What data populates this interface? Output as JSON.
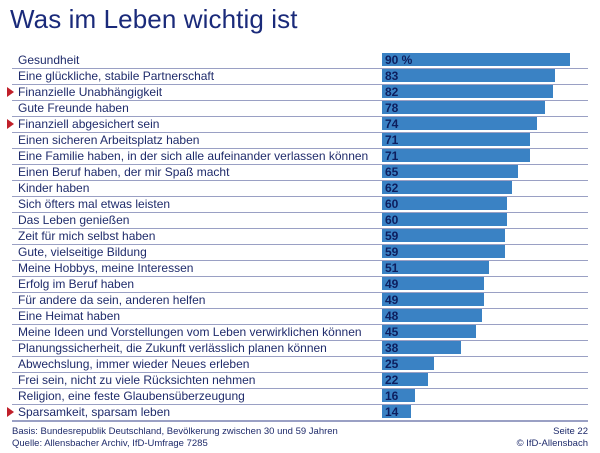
{
  "title": "Was im Leben wichtig ist",
  "footer": {
    "basis": "Basis: Bundesrepublik Deutschland, Bevölkerung zwischen 30 und 59 Jahren",
    "source": "Quelle: Allensbacher Archiv, IfD-Umfrage 7285",
    "page": "Seite 22",
    "copyright": "© IfD-Allensbach"
  },
  "colors": {
    "bar": "#3a82c4",
    "marker": "#c0202a",
    "text": "#1f2b6b"
  },
  "chart_data": {
    "type": "bar",
    "orientation": "horizontal",
    "title": "Was im Leben wichtig ist",
    "unit": "%",
    "categories": [
      "Gesundheit",
      "Eine glückliche, stabile Partnerschaft",
      "Finanzielle Unabhängigkeit",
      "Gute Freunde haben",
      "Finanziell abgesichert sein",
      "Einen sicheren Arbeitsplatz haben",
      "Eine Familie haben, in der sich alle aufeinander verlassen können",
      "Einen Beruf haben, der mir Spaß macht",
      "Kinder haben",
      "Sich öfters mal etwas leisten",
      "Das Leben genießen",
      "Zeit für mich selbst haben",
      "Gute, vielseitige Bildung",
      "Meine Hobbys, meine Interessen",
      "Erfolg im Beruf haben",
      "Für andere da sein, anderen helfen",
      "Eine Heimat haben",
      "Meine Ideen und Vorstellungen vom Leben verwirklichen können",
      "Planungssicherheit, die Zukunft verlässlich planen können",
      "Abwechslung, immer wieder Neues erleben",
      "Frei sein, nicht zu viele Rücksichten nehmen",
      "Religion, eine feste Glaubensüberzeugung",
      "Sparsamkeit, sparsam leben"
    ],
    "values": [
      90,
      83,
      82,
      78,
      74,
      71,
      71,
      65,
      62,
      60,
      60,
      59,
      59,
      51,
      49,
      49,
      48,
      45,
      38,
      25,
      22,
      16,
      14
    ],
    "value_labels": [
      "90 %",
      "83",
      "82",
      "78",
      "74",
      "71",
      "71",
      "65",
      "62",
      "60",
      "60",
      "59",
      "59",
      "51",
      "49",
      "49",
      "48",
      "45",
      "38",
      "25",
      "22",
      "16",
      "14"
    ],
    "highlighted": [
      false,
      false,
      true,
      false,
      true,
      false,
      false,
      false,
      false,
      false,
      false,
      false,
      false,
      false,
      false,
      false,
      false,
      false,
      false,
      false,
      false,
      false,
      true
    ],
    "xlim": [
      0,
      100
    ]
  }
}
